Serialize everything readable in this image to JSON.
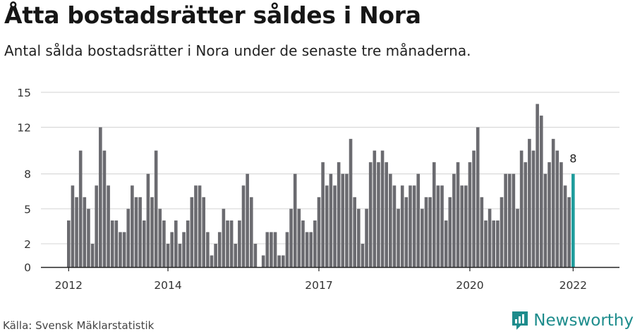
{
  "title": "Åtta bostadsrätter såldes i Nora",
  "subtitle": "Antal sålda bostadsrätter i Nora under de senaste tre månaderna.",
  "source": "Källa: Svensk Mäklarstatistik",
  "brand": "Newsworthy",
  "colors": {
    "bar": "#6b6b70",
    "highlight": "#1f9c9c",
    "grid": "#d9d9d9",
    "axis": "#222222",
    "brand": "#1d8c8c"
  },
  "chart_data": {
    "type": "bar",
    "ylim": [
      0,
      15
    ],
    "yticks": [
      0,
      2,
      5,
      8,
      12,
      15
    ],
    "ytick_labels": [
      "0",
      "2",
      "5",
      "8",
      "12",
      "15"
    ],
    "xtick_labels": [
      {
        "label": "2012",
        "index": 0
      },
      {
        "label": "2014",
        "index": 25
      },
      {
        "label": "2017",
        "index": 63
      },
      {
        "label": "2020",
        "index": 101
      },
      {
        "label": "2022",
        "index": 127
      }
    ],
    "highlight_label": "8",
    "values": [
      4,
      7,
      6,
      10,
      6,
      5,
      2,
      7,
      12,
      10,
      7,
      4,
      4,
      3,
      3,
      5,
      7,
      6,
      6,
      4,
      8,
      6,
      10,
      5,
      4,
      2,
      3,
      4,
      2,
      3,
      4,
      6,
      7,
      7,
      6,
      3,
      1,
      2,
      3,
      5,
      4,
      4,
      2,
      4,
      7,
      8,
      6,
      2,
      0,
      1,
      3,
      3,
      3,
      1,
      1,
      3,
      5,
      8,
      5,
      4,
      3,
      3,
      4,
      6,
      9,
      7,
      8,
      7,
      9,
      8,
      8,
      11,
      6,
      5,
      2,
      5,
      9,
      10,
      9,
      10,
      9,
      8,
      7,
      5,
      7,
      6,
      7,
      7,
      8,
      5,
      6,
      6,
      9,
      7,
      7,
      4,
      6,
      8,
      9,
      7,
      7,
      9,
      10,
      12,
      6,
      4,
      5,
      4,
      4,
      6,
      8,
      8,
      8,
      5,
      10,
      9,
      11,
      10,
      14,
      13,
      8,
      9,
      11,
      10,
      9,
      7,
      6,
      8
    ]
  }
}
